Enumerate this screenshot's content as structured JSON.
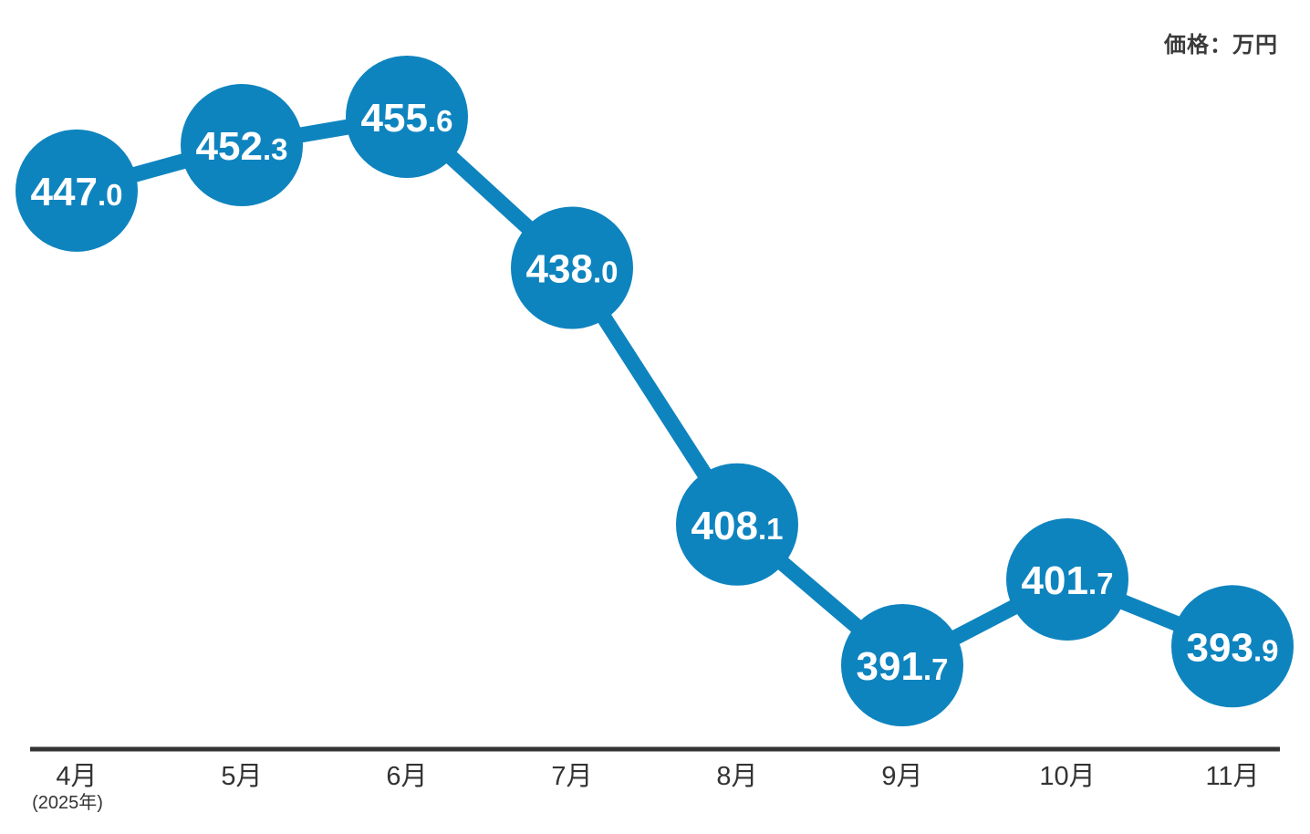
{
  "unit_label": "価格：万円",
  "chart_data": {
    "type": "line",
    "title": "",
    "unit_label": "価格：万円",
    "categories": [
      "4月",
      "5月",
      "6月",
      "7月",
      "8月",
      "9月",
      "10月",
      "11月"
    ],
    "x_axis_note": "(2025年)",
    "values": [
      447.0,
      452.3,
      455.6,
      438.0,
      408.1,
      391.7,
      401.7,
      393.9
    ],
    "value_labels": [
      "447.0",
      "452.3",
      "455.6",
      "438.0",
      "408.1",
      "391.7",
      "401.7",
      "393.9"
    ],
    "ylim": [
      391.7,
      455.6
    ],
    "grid": false,
    "legend": "none",
    "marker": "large-circle",
    "colors": {
      "series": "#0e84bf",
      "value_text": "#ffffff",
      "axis_line": "#333333",
      "tick_text": "#333333"
    }
  }
}
